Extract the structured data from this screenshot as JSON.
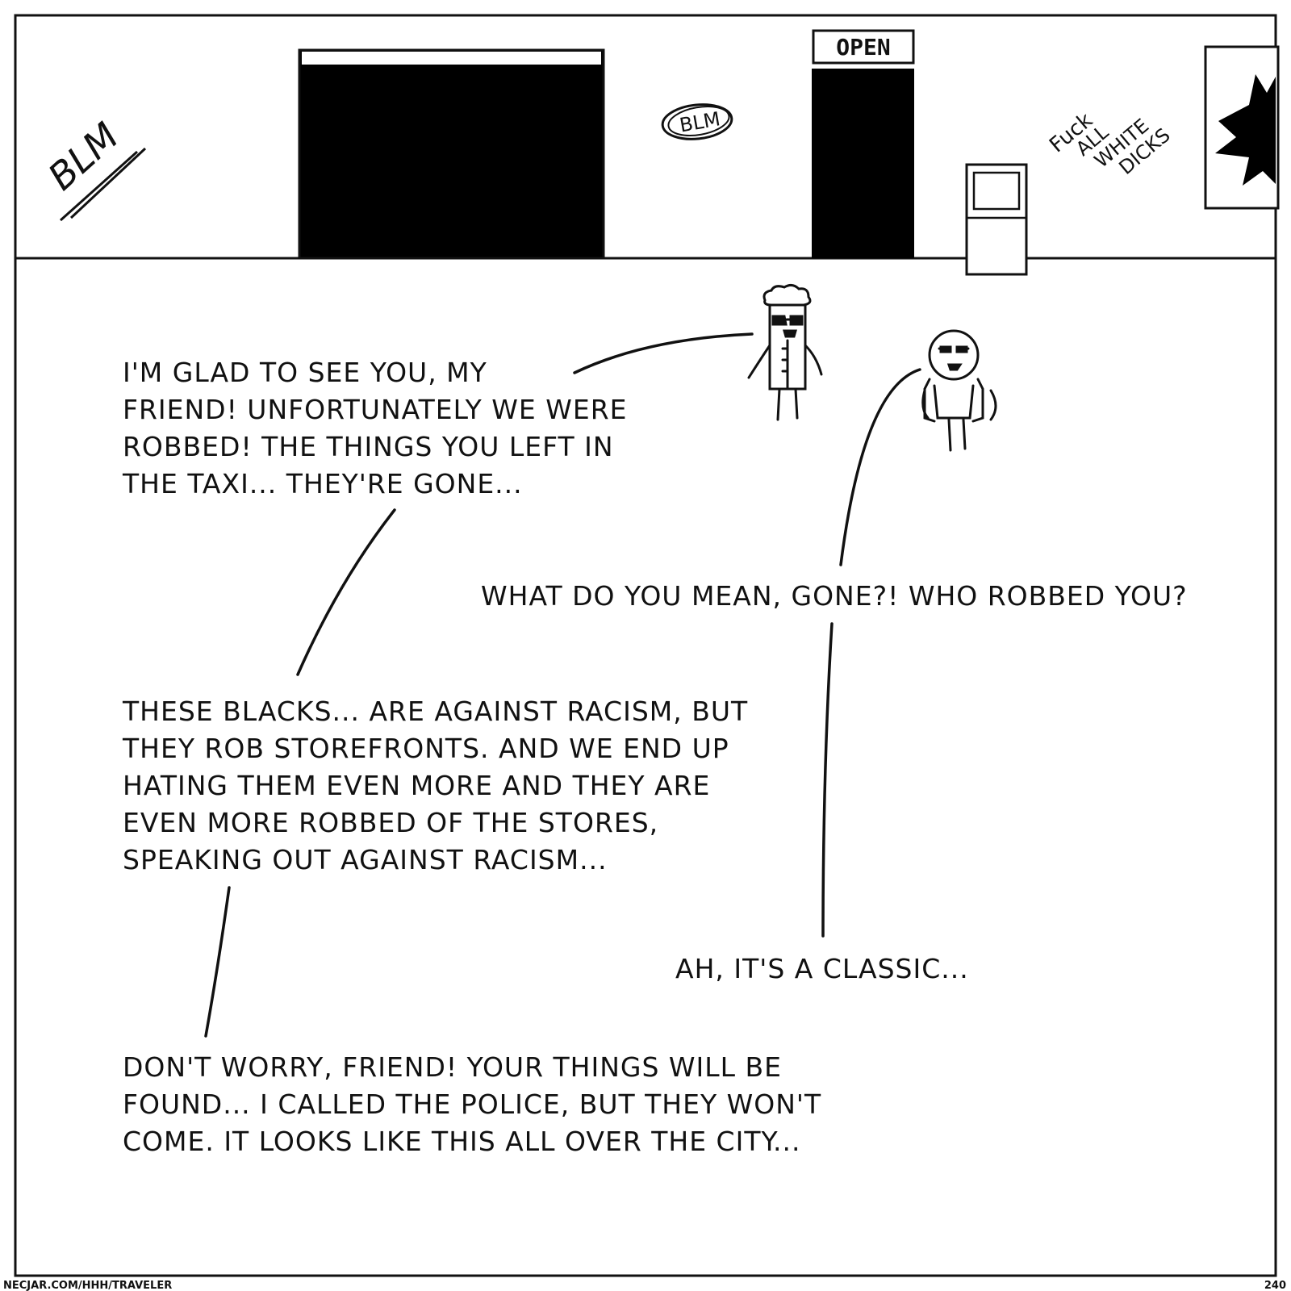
{
  "scene": {
    "sign_text": "OPEN",
    "graffiti": {
      "left": "BLM",
      "circle": "BLM",
      "right_lines": [
        "Fuck",
        "ALL",
        "WHITE",
        "DICKS"
      ]
    }
  },
  "dialogue": [
    {
      "speaker": "shopkeeper",
      "lines": [
        "I'M GLAD TO SEE YOU, MY",
        "FRIEND! UNFORTUNATELY WE WERE",
        "ROBBED! THE THINGS YOU LEFT IN",
        "THE TAXI... THEY'RE GONE..."
      ]
    },
    {
      "speaker": "traveler",
      "lines": [
        "WHAT DO YOU MEAN, GONE?! WHO ROBBED YOU?"
      ]
    },
    {
      "speaker": "shopkeeper",
      "lines": [
        "THESE BLACKS... ARE AGAINST RACISM, BUT",
        "THEY ROB STOREFRONTS. AND WE END UP",
        "HATING THEM EVEN MORE AND THEY ARE",
        "EVEN MORE ROBBED OF THE STORES,",
        "SPEAKING OUT AGAINST RACISM..."
      ]
    },
    {
      "speaker": "traveler",
      "lines": [
        "AH, IT'S A CLASSIC..."
      ]
    },
    {
      "speaker": "shopkeeper",
      "lines": [
        "DON'T WORRY, FRIEND! YOUR THINGS WILL BE",
        "FOUND... I CALLED THE POLICE, BUT THEY WON'T",
        "COME. IT LOOKS LIKE THIS ALL OVER THE CITY..."
      ]
    }
  ],
  "footer": {
    "url": "NECJAR.COM/HHH/TRAVELER",
    "page_number": "240"
  }
}
